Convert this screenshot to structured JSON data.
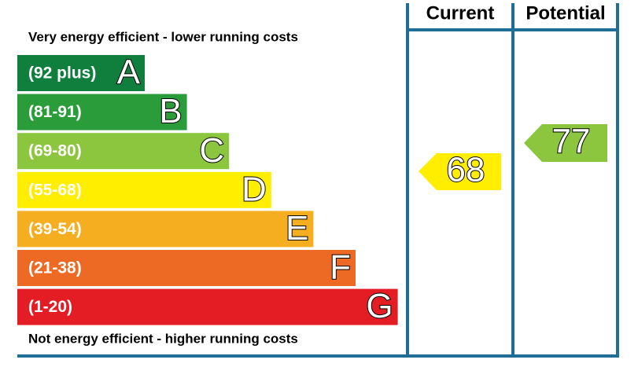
{
  "columns": {
    "current": "Current",
    "potential": "Potential"
  },
  "notes": {
    "top": "Very energy efficient - lower running costs",
    "bottom": "Not energy efficient - higher running costs"
  },
  "bands": [
    {
      "range": "(92 plus)",
      "letter": "A",
      "color": "#107f3e"
    },
    {
      "range": "(81-91)",
      "letter": "B",
      "color": "#2a9d3a"
    },
    {
      "range": "(69-80)",
      "letter": "C",
      "color": "#8cc63e"
    },
    {
      "range": "(55-68)",
      "letter": "D",
      "color": "#ffee00"
    },
    {
      "range": "(39-54)",
      "letter": "E",
      "color": "#f5ae1f"
    },
    {
      "range": "(21-38)",
      "letter": "F",
      "color": "#ed6a24"
    },
    {
      "range": "(1-20)",
      "letter": "G",
      "color": "#e31d23"
    }
  ],
  "ratings": {
    "current": 68,
    "potential": 77
  }
}
